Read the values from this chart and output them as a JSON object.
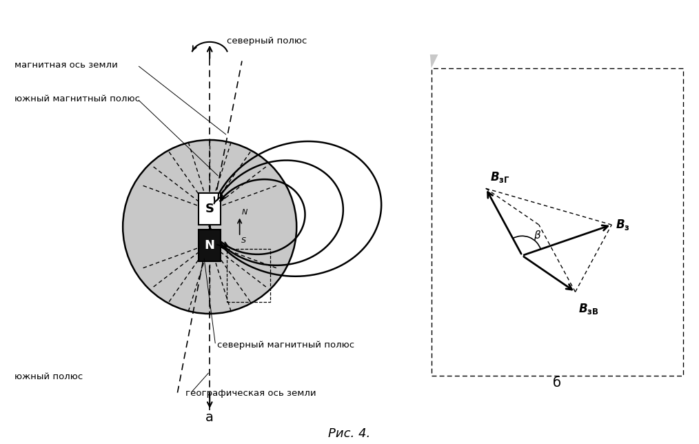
{
  "title": "Рис. 4.",
  "label_a": "а",
  "label_b": "б",
  "bg_color": "#ffffff",
  "earth_color": "#c8c8c8",
  "magnet_S_color": "#ffffff",
  "magnet_N_color": "#111111",
  "text_magnetic_axis": "магнитная ось земли",
  "text_south_mag": "южный магнитный полюс",
  "text_north_pole": "северный полюс",
  "text_south_pole": "южный полюс",
  "text_north_mag": "северный магнитный полюс",
  "text_geo_axis": "географическая ось земли",
  "tilt_deg": 11
}
